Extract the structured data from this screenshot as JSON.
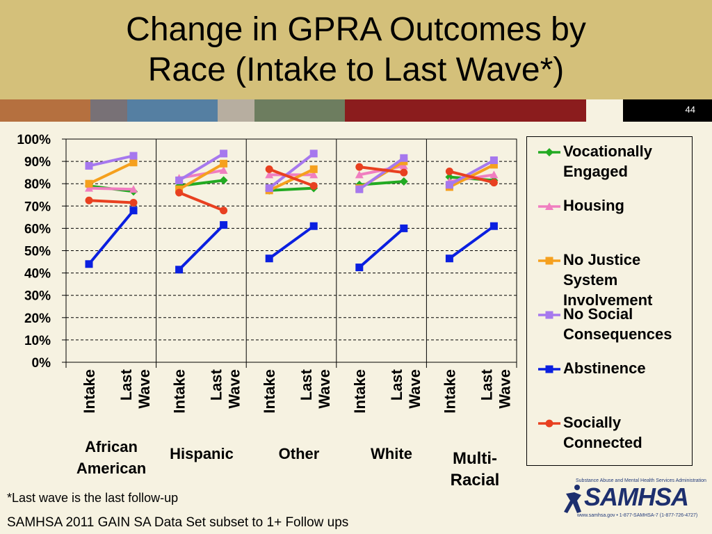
{
  "title_line1": "Change in GPRA Outcomes by",
  "title_line2": "Race (Intake to Last Wave*)",
  "slide_number": "44",
  "band_colors": [
    "#b5703f",
    "#787176",
    "#557fa2",
    "#b7aea0",
    "#6d7d5f",
    "#8b1c1d",
    "#f6f2e1",
    "#000000"
  ],
  "chart_data": {
    "type": "line",
    "ylim": [
      0,
      100
    ],
    "yticks": [
      "0%",
      "10%",
      "20%",
      "30%",
      "40%",
      "50%",
      "60%",
      "70%",
      "80%",
      "90%",
      "100%"
    ],
    "groups": [
      "African American",
      "Hispanic",
      "Other",
      "White",
      "Multi-Racial"
    ],
    "x_labels": [
      "Intake",
      "Last Wave"
    ],
    "grid": "horizontal dashed",
    "legend": "right",
    "series": [
      {
        "name": "Vocationally Engaged",
        "color": "#22aa22",
        "marker": "diamond",
        "values": [
          [
            79,
            76.5
          ],
          [
            79,
            81.5
          ],
          [
            77,
            78
          ],
          [
            79.5,
            81
          ],
          [
            83,
            81.5
          ]
        ]
      },
      {
        "name": "Housing",
        "color": "#f07ec0",
        "marker": "triangle",
        "values": [
          [
            78,
            77.5
          ],
          [
            82.5,
            86
          ],
          [
            84,
            84
          ],
          [
            84,
            88
          ],
          [
            81,
            84
          ]
        ]
      },
      {
        "name": "No Justice System Involvement",
        "color": "#f5a01e",
        "marker": "square",
        "values": [
          [
            80,
            89.5
          ],
          [
            77.5,
            89
          ],
          [
            77,
            86.5
          ],
          [
            78,
            90
          ],
          [
            78.5,
            88.5
          ]
        ]
      },
      {
        "name": "No Social Consequences",
        "color": "#a678ee",
        "marker": "square",
        "values": [
          [
            88,
            92.5
          ],
          [
            81.5,
            93.5
          ],
          [
            78,
            93.5
          ],
          [
            77.5,
            91.5
          ],
          [
            79.5,
            90.5
          ]
        ]
      },
      {
        "name": "Abstinence",
        "color": "#0a1fe0",
        "marker": "square",
        "values": [
          [
            44,
            68
          ],
          [
            41.5,
            61.5
          ],
          [
            46.5,
            61
          ],
          [
            42.5,
            60
          ],
          [
            46.5,
            61
          ]
        ]
      },
      {
        "name": "Socially Connected",
        "color": "#e84020",
        "marker": "circle",
        "values": [
          [
            72.5,
            71.5
          ],
          [
            76,
            68
          ],
          [
            86.5,
            79
          ],
          [
            87.5,
            85
          ],
          [
            85.5,
            80.5
          ]
        ]
      }
    ]
  },
  "legend_items": [
    {
      "label": "Vocationally Engaged",
      "color": "#22aa22",
      "marker": "diamond"
    },
    {
      "label": "Housing",
      "color": "#f07ec0",
      "marker": "triangle"
    },
    {
      "label": "No Justice System Involvement",
      "color": "#f5a01e",
      "marker": "square"
    },
    {
      "label": "No Social Consequences",
      "color": "#a678ee",
      "marker": "square"
    },
    {
      "label": "Abstinence",
      "color": "#0a1fe0",
      "marker": "square"
    },
    {
      "label": "Socially Connected",
      "color": "#e84020",
      "marker": "circle"
    }
  ],
  "categories": [
    {
      "line1": "African",
      "line2": "American"
    },
    {
      "line1": "Hispanic",
      "line2": ""
    },
    {
      "line1": "Other",
      "line2": ""
    },
    {
      "line1": "White",
      "line2": ""
    },
    {
      "line1": "Multi-",
      "line2": "Racial"
    }
  ],
  "footnote": "*Last wave is the last follow-up",
  "source": "SAMHSA 2011 GAIN SA Data Set subset to 1+ Follow ups",
  "logo": {
    "name": "SAMHSA",
    "tagline": "Substance Abuse and Mental Health Services Administration",
    "contact": "www.samhsa.gov • 1-877-SAMHSA-7 (1-877-726-4727)"
  }
}
